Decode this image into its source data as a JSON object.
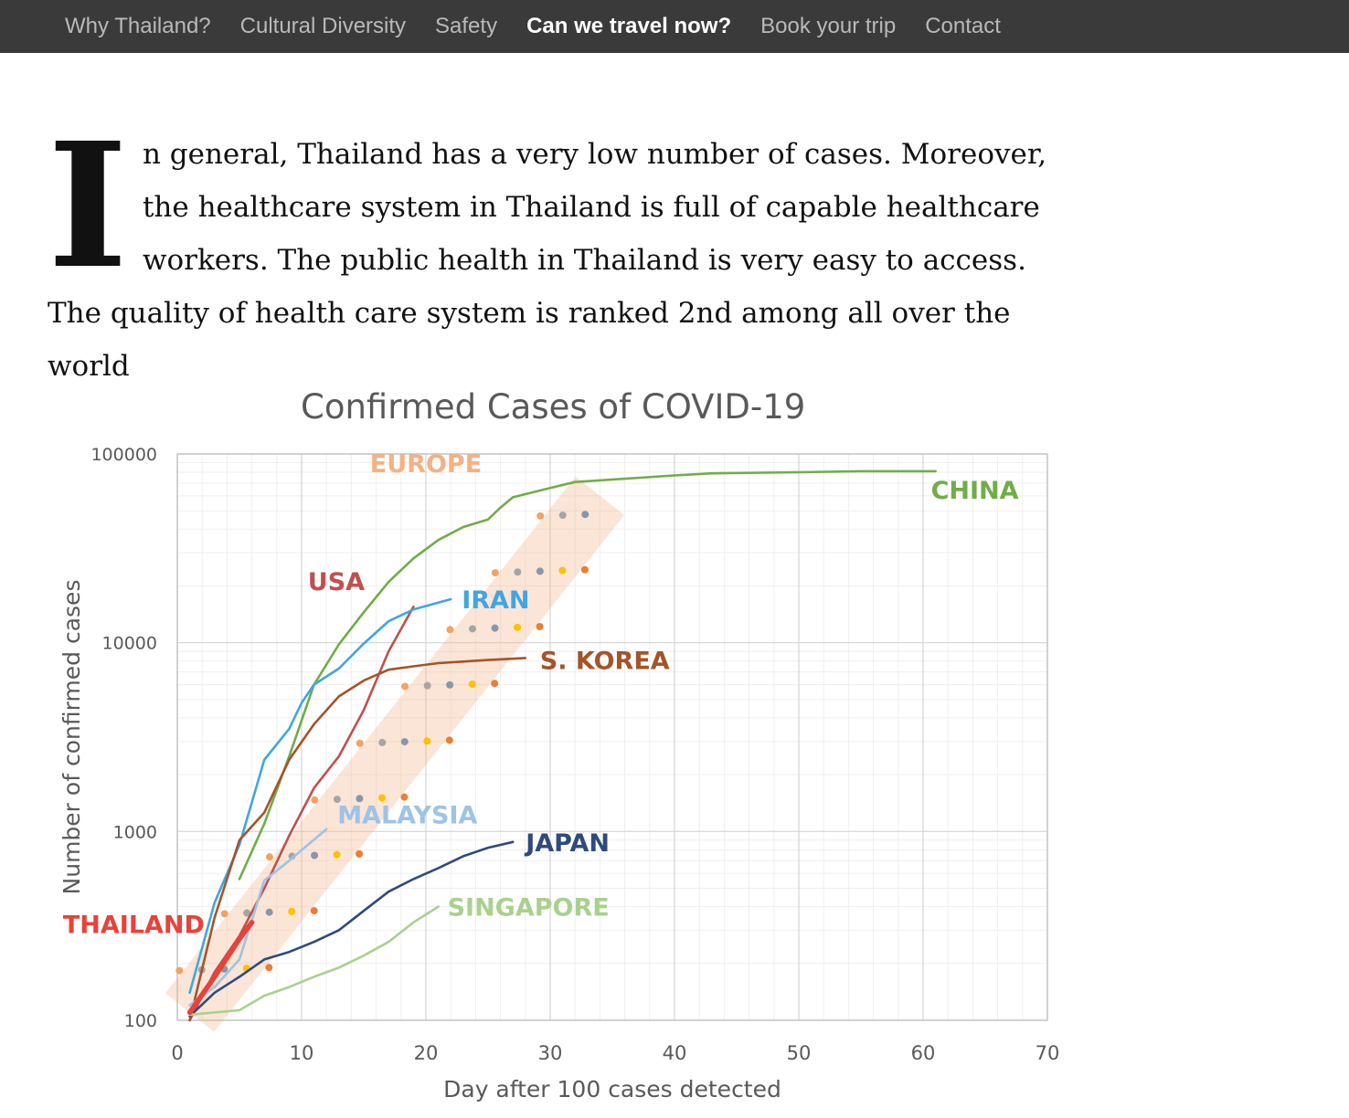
{
  "nav": {
    "items": [
      {
        "label": "Why Thailand?",
        "active": false
      },
      {
        "label": "Cultural Diversity",
        "active": false
      },
      {
        "label": "Safety",
        "active": false
      },
      {
        "label": "Can we travel now?",
        "active": true
      },
      {
        "label": "Book your trip",
        "active": false
      },
      {
        "label": "Contact",
        "active": false
      }
    ]
  },
  "intro": {
    "dropcap": "I",
    "text": "n general, Thailand has a very low number of cases. Moreover, the healthcare system in Thailand is full of capable healthcare workers. The public health in Thailand is very easy to access. The quality of health care system is ranked 2nd among all over the world"
  },
  "chart_data": {
    "type": "line",
    "title": "Confirmed Cases of COVID-19",
    "xlabel": "Day after 100 cases detected",
    "ylabel": "Number of confirmed cases",
    "xlim": [
      0,
      70
    ],
    "ylim": [
      100,
      100000
    ],
    "yscale": "log",
    "x_ticks": [
      "0",
      "10",
      "20",
      "30",
      "40",
      "50",
      "60",
      "70"
    ],
    "y_ticks": [
      "100",
      "1000",
      "10000",
      "100000"
    ],
    "grid": true,
    "series": [
      {
        "name": "CHINA",
        "color": "#70ad47",
        "x": [
          5,
          7,
          9,
          11,
          13,
          15,
          17,
          19,
          21,
          23,
          25,
          26,
          27,
          30,
          32,
          40,
          43,
          50,
          55,
          61
        ],
        "y": [
          560,
          1100,
          2500,
          6000,
          9800,
          14500,
          21000,
          28000,
          35000,
          41000,
          45000,
          52000,
          59000,
          66000,
          71000,
          77000,
          79000,
          80000,
          81000,
          81000
        ]
      },
      {
        "name": "EUROPE",
        "color": "#f4b183",
        "x": [
          1,
          34
        ],
        "y": [
          110,
          60000
        ]
      },
      {
        "name": "USA",
        "color": "#c0504d",
        "x": [
          1,
          3,
          5,
          7,
          9,
          11,
          13,
          15,
          17,
          19
        ],
        "y": [
          100,
          180,
          280,
          500,
          950,
          1700,
          2500,
          4400,
          9000,
          15500
        ]
      },
      {
        "name": "IRAN",
        "color": "#41a6e0",
        "x": [
          1,
          3,
          5,
          7,
          9,
          10,
          11,
          13,
          15,
          17,
          19,
          22
        ],
        "y": [
          140,
          420,
          850,
          2400,
          3500,
          4800,
          6000,
          7300,
          9900,
          13000,
          15000,
          17000
        ]
      },
      {
        "name": "S. KOREA",
        "color": "#a5542a",
        "x": [
          1,
          3,
          5,
          7,
          9,
          11,
          13,
          15,
          17,
          19,
          21,
          25,
          28
        ],
        "y": [
          100,
          350,
          900,
          1260,
          2400,
          3700,
          5200,
          6300,
          7200,
          7500,
          7800,
          8100,
          8300
        ]
      },
      {
        "name": "MALAYSIA",
        "color": "#9dc3e6",
        "x": [
          1,
          3,
          5,
          7,
          9,
          12
        ],
        "y": [
          120,
          150,
          210,
          550,
          700,
          1030
        ]
      },
      {
        "name": "JAPAN",
        "color": "#2f4b7c",
        "x": [
          1,
          3,
          5,
          7,
          9,
          11,
          13,
          15,
          17,
          19,
          21,
          23,
          25,
          27
        ],
        "y": [
          105,
          140,
          170,
          210,
          230,
          260,
          300,
          380,
          480,
          560,
          640,
          740,
          820,
          880
        ]
      },
      {
        "name": "SINGAPORE",
        "color": "#a9d18e",
        "x": [
          1,
          3,
          5,
          7,
          9,
          11,
          13,
          15,
          17,
          19,
          21
        ],
        "y": [
          107,
          110,
          113,
          135,
          150,
          170,
          190,
          220,
          260,
          330,
          400
        ]
      },
      {
        "name": "THAILAND",
        "color": "#e8423a",
        "x": [
          1,
          3,
          5,
          6
        ],
        "y": [
          110,
          170,
          270,
          330
        ]
      }
    ]
  }
}
